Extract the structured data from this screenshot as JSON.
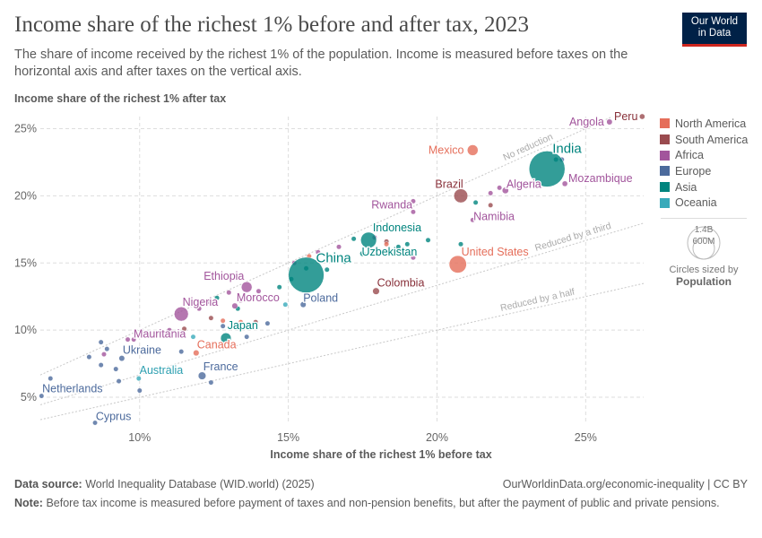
{
  "header": {
    "title": "Income share of the richest 1% before and after tax, 2023",
    "subtitle": "The share of income received by the richest 1% of the population. Income is measured before taxes on the horizontal axis and after taxes on the vertical axis.",
    "logo": "Our World in Data"
  },
  "footer": {
    "source_label": "Data source:",
    "source": "World Inequality Database (WID.world) (2025)",
    "url": "OurWorldinData.org/economic-inequality | CC BY",
    "note_label": "Note:",
    "note": "Before tax income is measured before payment of taxes and non-pension benefits, but after the payment of public and private pensions."
  },
  "legend": {
    "items": [
      {
        "label": "North America",
        "color": "#E56E5A"
      },
      {
        "label": "South America",
        "color": "#9A4B4F"
      },
      {
        "label": "Africa",
        "color": "#A2559C"
      },
      {
        "label": "Europe",
        "color": "#4C6A9C"
      },
      {
        "label": "Asia",
        "color": "#00847E"
      },
      {
        "label": "Oceania",
        "color": "#38AABA"
      }
    ],
    "size_large": "1.4B",
    "size_small": "600M",
    "size_caption": "Circles sized by",
    "size_variable": "Population"
  },
  "chart_data": {
    "type": "scatter",
    "title": "Income share of the richest 1% before and after tax, 2023",
    "xlabel": "Income share of the richest 1% before tax",
    "ylabel": "Income share of the richest 1% after tax",
    "xlim": [
      6.66,
      26.95
    ],
    "ylim": [
      3.2,
      25.9
    ],
    "xticks": [
      10,
      15,
      20,
      25
    ],
    "yticks": [
      5,
      10,
      15,
      20,
      25
    ],
    "tick_suffix": "%",
    "grid": true,
    "legend_placement": "right",
    "reference_lines": [
      {
        "label": "No reduction",
        "slope": 1
      },
      {
        "label": "Reduced by a third",
        "slope": 0.6667
      },
      {
        "label": "Reduced by a half",
        "slope": 0.5
      }
    ],
    "points": [
      {
        "name": "Peru",
        "region": "South America",
        "x": 26.9,
        "y": 25.9,
        "pop": 34
      },
      {
        "name": "Angola",
        "region": "Africa",
        "x": 25.8,
        "y": 25.5,
        "pop": 37
      },
      {
        "name": "Mexico",
        "region": "North America",
        "x": 21.2,
        "y": 23.4,
        "pop": 129
      },
      {
        "name": "India",
        "region": "Asia",
        "x": 23.7,
        "y": 22.0,
        "pop": 1430
      },
      {
        "name": "Mozambique",
        "region": "Africa",
        "x": 24.3,
        "y": 20.9,
        "pop": 34
      },
      {
        "name": "Algeria",
        "region": "Africa",
        "x": 22.3,
        "y": 20.4,
        "pop": 46
      },
      {
        "name": "Brazil",
        "region": "South America",
        "x": 20.8,
        "y": 20.0,
        "pop": 216
      },
      {
        "name": "Rwanda",
        "region": "Africa",
        "x": 19.2,
        "y": 18.8,
        "pop": 14
      },
      {
        "name": "Namibia",
        "region": "Africa",
        "x": 21.2,
        "y": 18.2,
        "pop": 3
      },
      {
        "name": "Indonesia",
        "region": "Asia",
        "x": 17.7,
        "y": 16.7,
        "pop": 278
      },
      {
        "name": "Uzbekistan",
        "region": "Asia",
        "x": 17.5,
        "y": 15.7,
        "pop": 36
      },
      {
        "name": "United States",
        "region": "North America",
        "x": 20.7,
        "y": 14.9,
        "pop": 335
      },
      {
        "name": "Colombia",
        "region": "South America",
        "x": 17.95,
        "y": 12.9,
        "pop": 52
      },
      {
        "name": "China",
        "region": "Asia",
        "x": 15.6,
        "y": 14.1,
        "pop": 1410
      },
      {
        "name": "Poland",
        "region": "Europe",
        "x": 15.5,
        "y": 11.9,
        "pop": 38
      },
      {
        "name": "Ethiopia",
        "region": "Africa",
        "x": 13.6,
        "y": 13.2,
        "pop": 127
      },
      {
        "name": "Morocco",
        "region": "Africa",
        "x": 13.2,
        "y": 11.8,
        "pop": 38
      },
      {
        "name": "Nigeria",
        "region": "Africa",
        "x": 11.4,
        "y": 11.2,
        "pop": 224
      },
      {
        "name": "Mauritania",
        "region": "Africa",
        "x": 9.8,
        "y": 9.3,
        "pop": 5
      },
      {
        "name": "Japan",
        "region": "Asia",
        "x": 12.9,
        "y": 9.4,
        "pop": 124
      },
      {
        "name": "Canada",
        "region": "North America",
        "x": 11.9,
        "y": 8.3,
        "pop": 39
      },
      {
        "name": "Ukraine",
        "region": "Europe",
        "x": 9.4,
        "y": 7.9,
        "pop": 37
      },
      {
        "name": "Australia",
        "region": "Oceania",
        "x": 9.97,
        "y": 6.4,
        "pop": 27
      },
      {
        "name": "France",
        "region": "Europe",
        "x": 12.1,
        "y": 6.6,
        "pop": 66
      },
      {
        "name": "Netherlands",
        "region": "Europe",
        "x": 6.7,
        "y": 5.1,
        "pop": 18
      },
      {
        "name": "Cyprus",
        "region": "Europe",
        "x": 8.5,
        "y": 3.1,
        "pop": 1
      }
    ],
    "unlabeled_points": [
      {
        "region": "Africa",
        "x": 11.0,
        "y": 10.0
      },
      {
        "region": "Africa",
        "x": 12.0,
        "y": 11.6
      },
      {
        "region": "Africa",
        "x": 13.4,
        "y": 12.2
      },
      {
        "region": "Africa",
        "x": 14.0,
        "y": 12.9
      },
      {
        "region": "Africa",
        "x": 15.2,
        "y": 15.0
      },
      {
        "region": "Africa",
        "x": 16.0,
        "y": 15.8
      },
      {
        "region": "Africa",
        "x": 16.7,
        "y": 16.2
      },
      {
        "region": "Africa",
        "x": 17.9,
        "y": 16.9
      },
      {
        "region": "Africa",
        "x": 19.2,
        "y": 15.4
      },
      {
        "region": "Africa",
        "x": 19.2,
        "y": 19.6
      },
      {
        "region": "Africa",
        "x": 21.8,
        "y": 20.2
      },
      {
        "region": "Africa",
        "x": 22.1,
        "y": 20.6
      },
      {
        "region": "Africa",
        "x": 13.0,
        "y": 12.8
      },
      {
        "region": "Africa",
        "x": 12.3,
        "y": 12.1
      },
      {
        "region": "Africa",
        "x": 8.8,
        "y": 8.2
      },
      {
        "region": "Africa",
        "x": 9.6,
        "y": 9.3
      },
      {
        "region": "Asia",
        "x": 12.6,
        "y": 12.4
      },
      {
        "region": "Asia",
        "x": 13.3,
        "y": 11.6
      },
      {
        "region": "Asia",
        "x": 14.7,
        "y": 13.2
      },
      {
        "region": "Asia",
        "x": 15.1,
        "y": 13.8
      },
      {
        "region": "Asia",
        "x": 16.3,
        "y": 14.5
      },
      {
        "region": "Asia",
        "x": 16.9,
        "y": 15.1
      },
      {
        "region": "Asia",
        "x": 19.7,
        "y": 16.7
      },
      {
        "region": "Asia",
        "x": 18.7,
        "y": 16.2
      },
      {
        "region": "Asia",
        "x": 20.8,
        "y": 16.4
      },
      {
        "region": "Asia",
        "x": 17.2,
        "y": 16.8
      },
      {
        "region": "Asia",
        "x": 21.3,
        "y": 19.5
      },
      {
        "region": "Asia",
        "x": 19.0,
        "y": 16.4
      },
      {
        "region": "Asia",
        "x": 24.0,
        "y": 22.7
      },
      {
        "region": "Asia",
        "x": 15.6,
        "y": 14.6
      },
      {
        "region": "Europe",
        "x": 8.7,
        "y": 9.1
      },
      {
        "region": "Europe",
        "x": 8.3,
        "y": 8.0
      },
      {
        "region": "Europe",
        "x": 8.7,
        "y": 7.4
      },
      {
        "region": "Europe",
        "x": 9.2,
        "y": 7.1
      },
      {
        "region": "Europe",
        "x": 9.3,
        "y": 6.2
      },
      {
        "region": "Europe",
        "x": 10.0,
        "y": 5.5
      },
      {
        "region": "Europe",
        "x": 7.5,
        "y": 5.7
      },
      {
        "region": "Europe",
        "x": 7.0,
        "y": 6.4
      },
      {
        "region": "Europe",
        "x": 11.4,
        "y": 8.4
      },
      {
        "region": "Europe",
        "x": 12.4,
        "y": 6.1
      },
      {
        "region": "Europe",
        "x": 13.6,
        "y": 9.5
      },
      {
        "region": "Europe",
        "x": 14.3,
        "y": 10.5
      },
      {
        "region": "Europe",
        "x": 12.8,
        "y": 10.3
      },
      {
        "region": "Europe",
        "x": 24.2,
        "y": 22.7
      },
      {
        "region": "Europe",
        "x": 8.9,
        "y": 8.6
      },
      {
        "region": "South America",
        "x": 12.4,
        "y": 10.9
      },
      {
        "region": "South America",
        "x": 13.9,
        "y": 10.6
      },
      {
        "region": "South America",
        "x": 18.3,
        "y": 16.6
      },
      {
        "region": "South America",
        "x": 21.8,
        "y": 19.3
      },
      {
        "region": "South America",
        "x": 11.5,
        "y": 10.1
      },
      {
        "region": "North America",
        "x": 12.8,
        "y": 10.7
      },
      {
        "region": "North America",
        "x": 13.4,
        "y": 10.6
      },
      {
        "region": "North America",
        "x": 18.3,
        "y": 16.4
      },
      {
        "region": "North America",
        "x": 15.7,
        "y": 15.5
      },
      {
        "region": "Oceania",
        "x": 11.8,
        "y": 9.5
      },
      {
        "region": "Oceania",
        "x": 14.9,
        "y": 11.9
      }
    ]
  }
}
